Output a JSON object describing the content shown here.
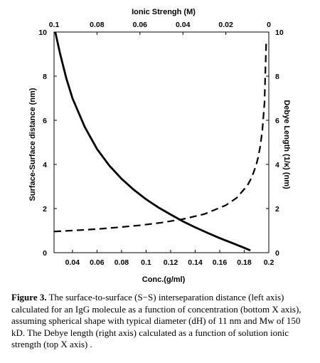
{
  "chart_data": {
    "type": "line",
    "title": "",
    "top_axis": {
      "label": "Ionic Strengh (M)",
      "ticks": [
        0.1,
        0.08,
        0.06,
        0.04,
        0.02,
        0
      ],
      "tick_labels": [
        "0.1",
        "0.08",
        "0.06",
        "0.04",
        "0.02",
        "0"
      ],
      "range": [
        0.1,
        0
      ]
    },
    "bottom_axis": {
      "label": "Conc.(g/ml)",
      "ticks": [
        0.04,
        0.06,
        0.08,
        0.1,
        0.12,
        0.14,
        0.16,
        0.18,
        0.2
      ],
      "tick_labels": [
        "0.04",
        "0.06",
        "0.08",
        "0.1",
        "0.12",
        "0.14",
        "0.16",
        "0.18",
        "0.2"
      ],
      "range": [
        0.025,
        0.2
      ]
    },
    "left_axis": {
      "label": "Surface-Surface distance (nm)",
      "ticks": [
        0,
        2,
        4,
        6,
        8,
        10
      ],
      "tick_labels": [
        "0",
        "2",
        "4",
        "6",
        "8",
        "10"
      ],
      "range": [
        0,
        10
      ]
    },
    "right_axis": {
      "label": "Debye Length (1/κ) (nm)",
      "ticks": [
        0,
        2,
        4,
        6,
        8,
        10
      ],
      "tick_labels": [
        "0",
        "2",
        "4",
        "6",
        "8",
        "10"
      ],
      "range": [
        0,
        10
      ]
    },
    "series": [
      {
        "style": "solid",
        "x_axis": "bottom",
        "y_axis": "left",
        "x": [
          0.026,
          0.03,
          0.035,
          0.04,
          0.05,
          0.06,
          0.07,
          0.08,
          0.09,
          0.1,
          0.11,
          0.12,
          0.13,
          0.14,
          0.15,
          0.16,
          0.17,
          0.18,
          0.185
        ],
        "y": [
          10.0,
          9.0,
          7.9,
          7.0,
          5.7,
          4.7,
          3.95,
          3.35,
          2.85,
          2.42,
          2.05,
          1.73,
          1.42,
          1.15,
          0.9,
          0.66,
          0.44,
          0.22,
          0.1
        ]
      },
      {
        "style": "dashed",
        "x_axis": "top",
        "y_axis": "right",
        "x": [
          0.1,
          0.09,
          0.08,
          0.07,
          0.06,
          0.05,
          0.04,
          0.03,
          0.02,
          0.015,
          0.01,
          0.008,
          0.006,
          0.005,
          0.004,
          0.003,
          0.002,
          0.0012
        ],
        "y": [
          0.96,
          1.01,
          1.07,
          1.15,
          1.24,
          1.36,
          1.52,
          1.75,
          2.15,
          2.48,
          3.04,
          3.4,
          3.93,
          4.3,
          4.81,
          5.55,
          6.8,
          9.6
        ]
      }
    ],
    "grid": false,
    "legend": "none"
  },
  "caption": {
    "label": "Figure 3.",
    "text": " The surface-to-surface (S−S) interseparation distance (left axis) calculated for an IgG molecule as a function of concentration (bottom X axis), assuming spherical shape with typical diameter (dH) of 11 nm and Mw of 150 kD. The Debye length (right axis) calculated as a function of solution ionic strength (top X axis) ."
  }
}
